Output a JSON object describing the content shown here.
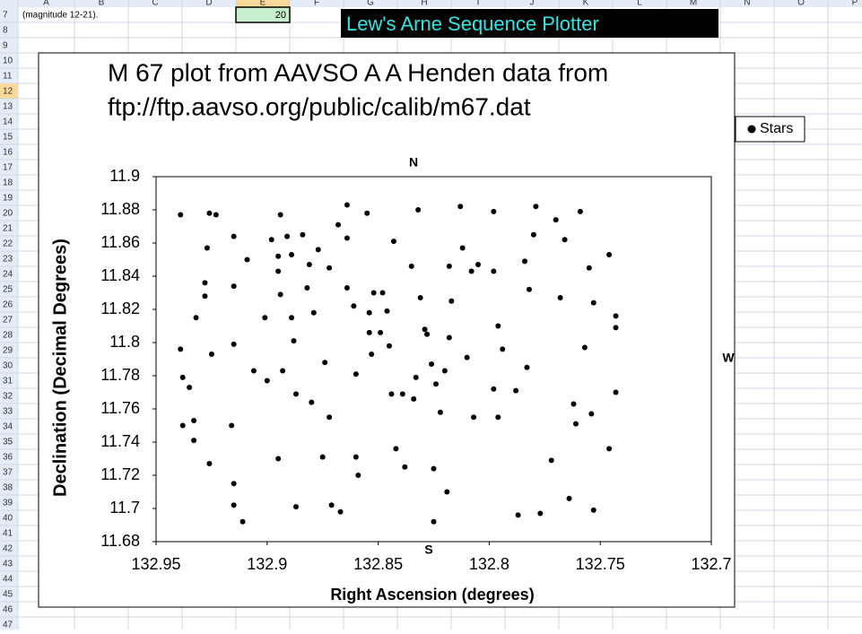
{
  "sheet": {
    "columns": [
      "A",
      "B",
      "C",
      "D",
      "E",
      "F",
      "G",
      "H",
      "I",
      "J",
      "K",
      "L",
      "M",
      "N",
      "O",
      "P"
    ],
    "rows": [
      7,
      8,
      9,
      10,
      11,
      12,
      13,
      14,
      15,
      16,
      17,
      18,
      19,
      20,
      21,
      22,
      23,
      24,
      25,
      26,
      27,
      28,
      29,
      30,
      31,
      32,
      33,
      34,
      35,
      36,
      37,
      38,
      39,
      40,
      41,
      42,
      43,
      44,
      45,
      46,
      47
    ],
    "a7": "(magnitude 12-21).",
    "e7": 20,
    "banner": "Lew's Arne Sequence Plotter"
  },
  "chart_data": {
    "type": "scatter",
    "title": [
      "M 67 plot from AAVSO A A Henden data from",
      "ftp://ftp.aavso.org/public/calib/m67.dat"
    ],
    "x_label": "Right Ascension  (degrees)",
    "y_label": "Declination (Decimal Degrees)",
    "annotations": {
      "north": "N",
      "south": "S",
      "west": "W"
    },
    "xlim": [
      132.95,
      132.7
    ],
    "ylim": [
      11.68,
      11.9
    ],
    "xticks": [
      132.95,
      132.9,
      132.85,
      132.8,
      132.75,
      132.7
    ],
    "yticks": [
      11.68,
      11.7,
      11.72,
      11.74,
      11.76,
      11.78,
      11.8,
      11.82,
      11.84,
      11.86,
      11.88,
      11.9
    ],
    "grid": false,
    "legend": "top-right",
    "x": [
      132.939,
      132.939,
      132.938,
      132.935,
      132.938,
      132.933,
      132.933,
      132.928,
      132.928,
      132.927,
      132.926,
      132.923,
      132.932,
      132.925,
      132.926,
      132.915,
      132.915,
      132.915,
      132.916,
      132.915,
      132.915,
      132.911,
      132.909,
      132.906,
      132.901,
      132.9,
      132.898,
      132.895,
      132.894,
      132.895,
      132.894,
      132.893,
      132.895,
      132.891,
      132.889,
      132.889,
      132.888,
      132.887,
      132.887,
      132.884,
      132.882,
      132.881,
      132.88,
      132.879,
      132.877,
      132.875,
      132.874,
      132.872,
      132.872,
      132.871,
      132.868,
      132.867,
      132.864,
      132.864,
      132.864,
      132.861,
      132.86,
      132.86,
      132.859,
      132.855,
      132.854,
      132.854,
      132.853,
      132.852,
      132.849,
      132.848,
      132.846,
      132.845,
      132.844,
      132.843,
      132.842,
      132.839,
      132.838,
      132.835,
      132.834,
      132.833,
      132.832,
      132.831,
      132.829,
      132.828,
      132.826,
      132.825,
      132.825,
      132.824,
      132.822,
      132.82,
      132.819,
      132.818,
      132.818,
      132.817,
      132.813,
      132.812,
      132.81,
      132.808,
      132.807,
      132.805,
      132.798,
      132.798,
      132.798,
      132.796,
      132.796,
      132.794,
      132.788,
      132.787,
      132.784,
      132.783,
      132.782,
      132.779,
      132.78,
      132.777,
      132.772,
      132.77,
      132.768,
      132.766,
      132.764,
      132.762,
      132.761,
      132.759,
      132.757,
      132.755,
      132.753,
      132.753,
      132.754,
      132.746,
      132.743,
      132.743,
      132.743,
      132.746
    ],
    "series": [
      {
        "name": "Stars",
        "color": "#000000",
        "values": [
          11.877,
          11.796,
          11.779,
          11.773,
          11.75,
          11.753,
          11.741,
          11.836,
          11.828,
          11.857,
          11.878,
          11.877,
          11.815,
          11.793,
          11.727,
          11.864,
          11.834,
          11.799,
          11.75,
          11.715,
          11.702,
          11.692,
          11.85,
          11.783,
          11.815,
          11.777,
          11.862,
          11.852,
          11.877,
          11.843,
          11.829,
          11.783,
          11.73,
          11.864,
          11.853,
          11.815,
          11.801,
          11.769,
          11.701,
          11.865,
          11.833,
          11.847,
          11.764,
          11.818,
          11.856,
          11.731,
          11.788,
          11.845,
          11.755,
          11.702,
          11.871,
          11.698,
          11.883,
          11.863,
          11.833,
          11.822,
          11.781,
          11.731,
          11.72,
          11.878,
          11.818,
          11.806,
          11.793,
          11.83,
          11.806,
          11.83,
          11.819,
          11.798,
          11.769,
          11.861,
          11.736,
          11.769,
          11.725,
          11.846,
          11.766,
          11.779,
          11.88,
          11.827,
          11.808,
          11.805,
          11.787,
          11.724,
          11.692,
          11.775,
          11.758,
          11.783,
          11.71,
          11.846,
          11.803,
          11.825,
          11.882,
          11.857,
          11.791,
          11.843,
          11.755,
          11.847,
          11.879,
          11.843,
          11.772,
          11.81,
          11.755,
          11.796,
          11.771,
          11.696,
          11.849,
          11.785,
          11.832,
          11.882,
          11.865,
          11.697,
          11.729,
          11.874,
          11.827,
          11.862,
          11.706,
          11.763,
          11.751,
          11.879,
          11.797,
          11.845,
          11.824,
          11.699,
          11.757,
          11.736,
          11.816,
          11.809,
          11.77,
          11.853
        ]
      }
    ]
  }
}
